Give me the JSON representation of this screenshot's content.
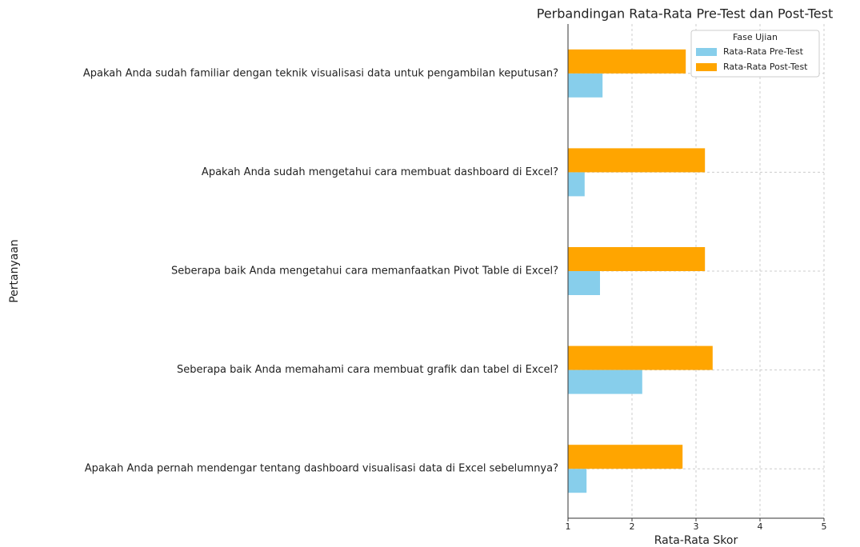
{
  "chart_data": {
    "type": "barh",
    "title": "Perbandingan Rata-Rata Pre-Test dan Post-Test",
    "xlabel": "Rata-Rata Skor",
    "ylabel": "Pertanyaan",
    "legend_title": "Fase Ujian",
    "legend": "upper right",
    "grid": true,
    "categories": [
      "Apakah Anda sudah familiar dengan teknik visualisasi data untuk pengambilan keputusan?",
      "Apakah Anda sudah mengetahui cara membuat dashboard di Excel?",
      "Seberapa baik Anda mengetahui cara memanfaatkan Pivot Table di Excel?",
      "Seberapa baik Anda memahami cara membuat grafik dan tabel di Excel?",
      "Apakah Anda pernah mendengar tentang dashboard visualisasi data di Excel sebelumnya?"
    ],
    "series": [
      {
        "name": "Rata-Rata Pre-Test",
        "color": "#87ceeb",
        "values": [
          1.54,
          1.26,
          1.5,
          2.16,
          1.29
        ]
      },
      {
        "name": "Rata-Rata Post-Test",
        "color": "#ffa500",
        "values": [
          2.84,
          3.14,
          3.14,
          3.26,
          2.79
        ]
      }
    ],
    "xlim": [
      1,
      5
    ],
    "xticks": [
      1,
      2,
      3,
      4,
      5
    ]
  }
}
